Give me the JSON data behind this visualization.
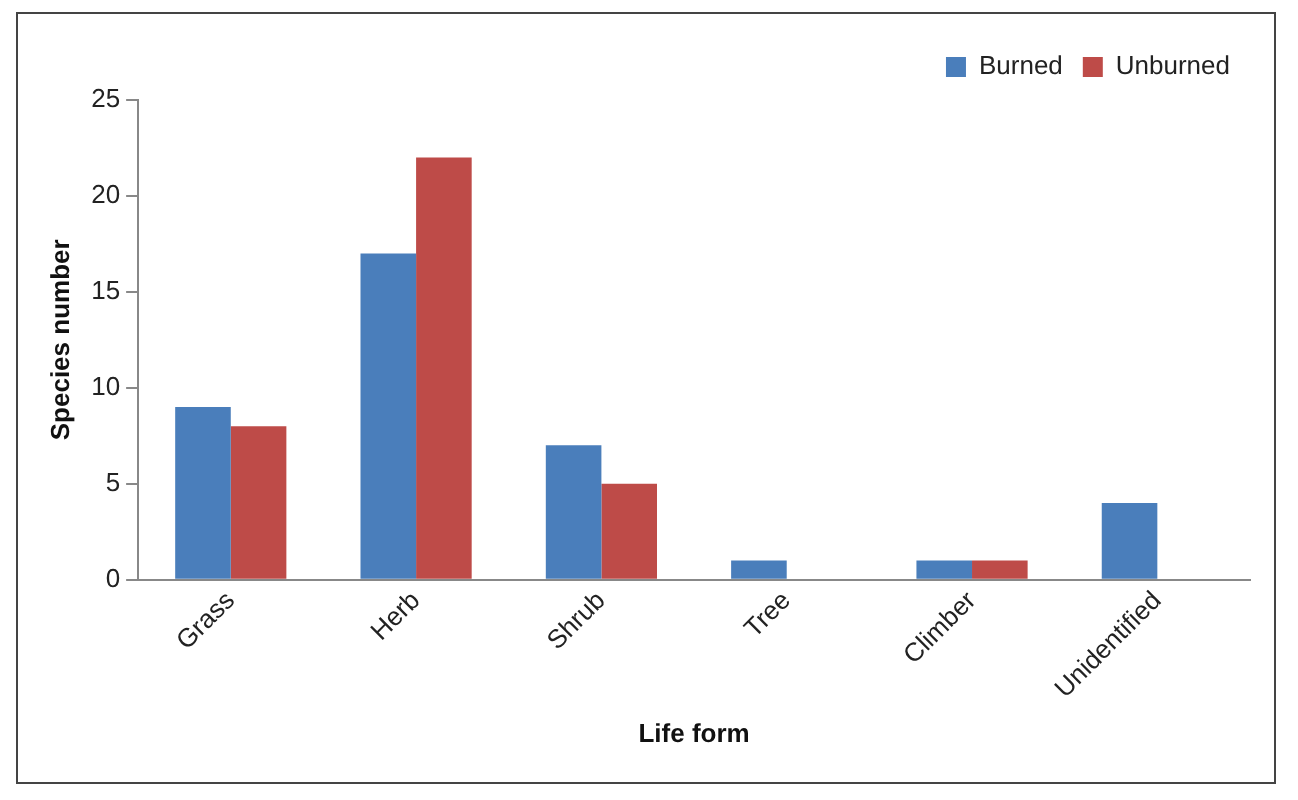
{
  "chart_data": {
    "type": "bar",
    "xlabel": "Life form",
    "ylabel": "Species number",
    "categories": [
      "Grass",
      "Herb",
      "Shrub",
      "Tree",
      "Climber",
      "Unidentified"
    ],
    "series": [
      {
        "name": "Burned",
        "color": "#4a7ebb",
        "values": [
          9,
          17,
          7,
          1,
          1,
          4
        ]
      },
      {
        "name": "Unburned",
        "color": "#be4b48",
        "values": [
          8,
          22,
          5,
          0,
          1,
          0
        ]
      }
    ],
    "ylim": [
      0,
      25
    ],
    "yticks": [
      0,
      5,
      10,
      15,
      20,
      25
    ],
    "grid": false,
    "legend": "top right"
  }
}
